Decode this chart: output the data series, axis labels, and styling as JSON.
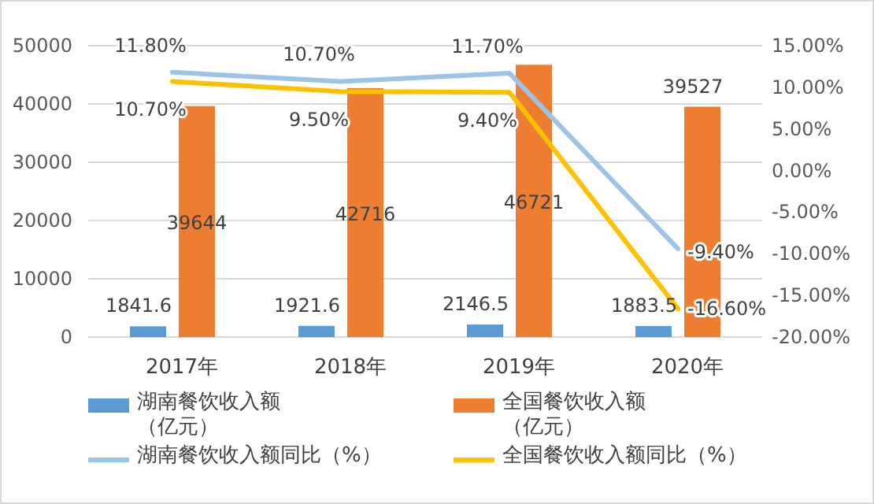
{
  "chart_data": {
    "type": "bar",
    "categories": [
      "2017年",
      "2018年",
      "2019年",
      "2020年"
    ],
    "series": [
      {
        "name": "湖南餐饮收入额（亿元）",
        "color": "#5b9bd5",
        "values": [
          1841.6,
          1921.6,
          2146.5,
          1883.5
        ],
        "value_labels": [
          "1841.6",
          "1921.6",
          "2146.5",
          "1883.5"
        ]
      },
      {
        "name": "全国餐饮收入额（亿元）",
        "color": "#ed7d31",
        "values": [
          39644,
          42716,
          46721,
          39527
        ],
        "value_labels": [
          "39644",
          "42716",
          "46721",
          "39527"
        ]
      },
      {
        "name": "湖南餐饮收入额同比（%）",
        "type": "line",
        "axis": "y2",
        "color": "#9dc3e6",
        "values": [
          11.8,
          10.7,
          11.7,
          -9.4
        ],
        "value_labels": [
          "11.80%",
          "10.70%",
          "11.70%",
          "-9.40%"
        ]
      },
      {
        "name": "全国餐饮收入额同比（%）",
        "type": "line",
        "axis": "y2",
        "color": "#ffc000",
        "values": [
          10.7,
          9.5,
          9.4,
          -16.6
        ],
        "value_labels": [
          "10.70%",
          "9.50%",
          "9.40%",
          "-16.60%"
        ]
      }
    ],
    "ylim": [
      0,
      50000
    ],
    "yticks": [
      0,
      10000,
      20000,
      30000,
      40000,
      50000
    ],
    "y2lim": [
      -20,
      15
    ],
    "y2ticks": [
      {
        "value": -20,
        "label": "-20.00%"
      },
      {
        "value": -15,
        "label": "-15.00%"
      },
      {
        "value": -10,
        "label": "-10.00%"
      },
      {
        "value": -5,
        "label": "-5.00%"
      },
      {
        "value": 0,
        "label": "0.00%"
      },
      {
        "value": 5,
        "label": "5.00%"
      },
      {
        "value": 10,
        "label": "10.00%"
      },
      {
        "value": 15,
        "label": "15.00%"
      }
    ],
    "grid": "y",
    "legend": "bottom",
    "marker": "none",
    "line_style": "solid"
  }
}
